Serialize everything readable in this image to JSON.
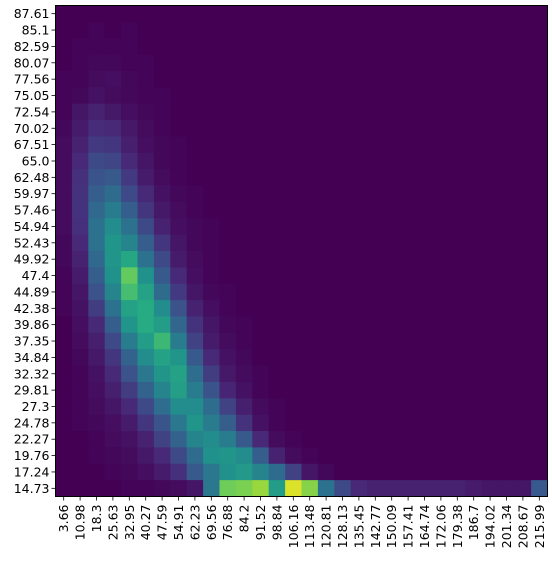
{
  "chart_data": {
    "type": "heatmap",
    "title": "",
    "xlabel": "",
    "ylabel": "",
    "x_categories": [
      "3.66",
      "10.98",
      "18.3",
      "25.63",
      "32.95",
      "40.27",
      "47.59",
      "54.91",
      "62.23",
      "69.56",
      "76.88",
      "84.2",
      "91.52",
      "98.84",
      "106.16",
      "113.48",
      "120.81",
      "128.13",
      "135.45",
      "142.77",
      "150.09",
      "157.41",
      "164.74",
      "172.06",
      "179.38",
      "186.7",
      "194.02",
      "201.34",
      "208.67",
      "215.99"
    ],
    "y_categories": [
      "87.61",
      "85.1",
      "82.59",
      "80.07",
      "77.56",
      "75.05",
      "72.54",
      "70.02",
      "67.51",
      "65.0",
      "62.48",
      "59.97",
      "57.46",
      "54.94",
      "52.43",
      "49.92",
      "47.4",
      "44.89",
      "42.38",
      "39.86",
      "37.35",
      "34.84",
      "32.32",
      "29.81",
      "27.3",
      "24.78",
      "22.27",
      "19.76",
      "17.24",
      "14.73"
    ],
    "colormap": "viridis",
    "value_range": [
      0,
      1
    ],
    "values": [
      [
        0.0,
        0.0,
        0.0,
        0.0,
        0.0,
        0.0,
        0.0,
        0.0,
        0.0,
        0.0,
        0.0,
        0.0,
        0.0,
        0.0,
        0.0,
        0.0,
        0.0,
        0.0,
        0.0,
        0.0,
        0.0,
        0.0,
        0.0,
        0.0,
        0.0,
        0.0,
        0.0,
        0.0,
        0.0,
        0.0
      ],
      [
        0.0,
        0.0,
        0.01,
        0.0,
        0.01,
        0.0,
        0.0,
        0.0,
        0.0,
        0.0,
        0.0,
        0.0,
        0.0,
        0.0,
        0.0,
        0.0,
        0.0,
        0.0,
        0.0,
        0.0,
        0.0,
        0.0,
        0.0,
        0.0,
        0.0,
        0.0,
        0.0,
        0.0,
        0.0,
        0.0
      ],
      [
        0.0,
        0.01,
        0.01,
        0.01,
        0.01,
        0.0,
        0.0,
        0.0,
        0.0,
        0.0,
        0.0,
        0.0,
        0.0,
        0.0,
        0.0,
        0.0,
        0.0,
        0.0,
        0.0,
        0.0,
        0.0,
        0.0,
        0.0,
        0.0,
        0.0,
        0.0,
        0.0,
        0.0,
        0.0,
        0.0
      ],
      [
        0.0,
        0.01,
        0.02,
        0.02,
        0.01,
        0.01,
        0.0,
        0.0,
        0.0,
        0.0,
        0.0,
        0.0,
        0.0,
        0.0,
        0.0,
        0.0,
        0.0,
        0.0,
        0.0,
        0.0,
        0.0,
        0.0,
        0.0,
        0.0,
        0.0,
        0.0,
        0.0,
        0.0,
        0.0,
        0.0
      ],
      [
        0.01,
        0.01,
        0.03,
        0.04,
        0.02,
        0.01,
        0.0,
        0.0,
        0.0,
        0.0,
        0.0,
        0.0,
        0.0,
        0.0,
        0.0,
        0.0,
        0.0,
        0.0,
        0.0,
        0.0,
        0.0,
        0.0,
        0.0,
        0.0,
        0.0,
        0.0,
        0.0,
        0.0,
        0.0,
        0.0
      ],
      [
        0.01,
        0.02,
        0.05,
        0.03,
        0.02,
        0.01,
        0.01,
        0.0,
        0.0,
        0.0,
        0.0,
        0.0,
        0.0,
        0.0,
        0.0,
        0.0,
        0.0,
        0.0,
        0.0,
        0.0,
        0.0,
        0.0,
        0.0,
        0.0,
        0.0,
        0.0,
        0.0,
        0.0,
        0.0,
        0.0
      ],
      [
        0.01,
        0.06,
        0.1,
        0.07,
        0.04,
        0.02,
        0.01,
        0.0,
        0.0,
        0.0,
        0.0,
        0.0,
        0.0,
        0.0,
        0.0,
        0.0,
        0.0,
        0.0,
        0.0,
        0.0,
        0.0,
        0.0,
        0.0,
        0.0,
        0.0,
        0.0,
        0.0,
        0.0,
        0.0,
        0.0
      ],
      [
        0.02,
        0.08,
        0.13,
        0.12,
        0.07,
        0.03,
        0.01,
        0.0,
        0.0,
        0.0,
        0.0,
        0.0,
        0.0,
        0.0,
        0.0,
        0.0,
        0.0,
        0.0,
        0.0,
        0.0,
        0.0,
        0.0,
        0.0,
        0.0,
        0.0,
        0.0,
        0.0,
        0.0,
        0.0,
        0.0
      ],
      [
        0.03,
        0.1,
        0.17,
        0.16,
        0.09,
        0.04,
        0.02,
        0.01,
        0.0,
        0.0,
        0.0,
        0.0,
        0.0,
        0.0,
        0.0,
        0.0,
        0.0,
        0.0,
        0.0,
        0.0,
        0.0,
        0.0,
        0.0,
        0.0,
        0.0,
        0.0,
        0.0,
        0.0,
        0.0,
        0.0
      ],
      [
        0.03,
        0.12,
        0.22,
        0.21,
        0.12,
        0.06,
        0.02,
        0.01,
        0.0,
        0.0,
        0.0,
        0.0,
        0.0,
        0.0,
        0.0,
        0.0,
        0.0,
        0.0,
        0.0,
        0.0,
        0.0,
        0.0,
        0.0,
        0.0,
        0.0,
        0.0,
        0.0,
        0.0,
        0.0,
        0.0
      ],
      [
        0.03,
        0.14,
        0.26,
        0.28,
        0.17,
        0.08,
        0.03,
        0.01,
        0.0,
        0.0,
        0.0,
        0.0,
        0.0,
        0.0,
        0.0,
        0.0,
        0.0,
        0.0,
        0.0,
        0.0,
        0.0,
        0.0,
        0.0,
        0.0,
        0.0,
        0.0,
        0.0,
        0.0,
        0.0,
        0.0
      ],
      [
        0.03,
        0.15,
        0.3,
        0.35,
        0.22,
        0.12,
        0.05,
        0.02,
        0.01,
        0.0,
        0.0,
        0.0,
        0.0,
        0.0,
        0.0,
        0.0,
        0.0,
        0.0,
        0.0,
        0.0,
        0.0,
        0.0,
        0.0,
        0.0,
        0.0,
        0.0,
        0.0,
        0.0,
        0.0,
        0.0
      ],
      [
        0.03,
        0.15,
        0.34,
        0.42,
        0.3,
        0.16,
        0.07,
        0.03,
        0.01,
        0.0,
        0.0,
        0.0,
        0.0,
        0.0,
        0.0,
        0.0,
        0.0,
        0.0,
        0.0,
        0.0,
        0.0,
        0.0,
        0.0,
        0.0,
        0.0,
        0.0,
        0.0,
        0.0,
        0.0,
        0.0
      ],
      [
        0.03,
        0.14,
        0.38,
        0.48,
        0.38,
        0.22,
        0.1,
        0.04,
        0.02,
        0.01,
        0.0,
        0.0,
        0.0,
        0.0,
        0.0,
        0.0,
        0.0,
        0.0,
        0.0,
        0.0,
        0.0,
        0.0,
        0.0,
        0.0,
        0.0,
        0.0,
        0.0,
        0.0,
        0.0,
        0.0
      ],
      [
        0.02,
        0.12,
        0.38,
        0.52,
        0.45,
        0.3,
        0.16,
        0.06,
        0.02,
        0.01,
        0.0,
        0.0,
        0.0,
        0.0,
        0.0,
        0.0,
        0.0,
        0.0,
        0.0,
        0.0,
        0.0,
        0.0,
        0.0,
        0.0,
        0.0,
        0.0,
        0.0,
        0.0,
        0.0,
        0.0
      ],
      [
        0.02,
        0.1,
        0.34,
        0.52,
        0.6,
        0.38,
        0.22,
        0.08,
        0.03,
        0.01,
        0.0,
        0.0,
        0.0,
        0.0,
        0.0,
        0.0,
        0.0,
        0.0,
        0.0,
        0.0,
        0.0,
        0.0,
        0.0,
        0.0,
        0.0,
        0.0,
        0.0,
        0.0,
        0.0,
        0.0
      ],
      [
        0.01,
        0.08,
        0.3,
        0.5,
        0.76,
        0.5,
        0.28,
        0.12,
        0.04,
        0.01,
        0.0,
        0.0,
        0.0,
        0.0,
        0.0,
        0.0,
        0.0,
        0.0,
        0.0,
        0.0,
        0.0,
        0.0,
        0.0,
        0.0,
        0.0,
        0.0,
        0.0,
        0.0,
        0.0,
        0.0
      ],
      [
        0.01,
        0.06,
        0.25,
        0.45,
        0.7,
        0.58,
        0.35,
        0.17,
        0.06,
        0.02,
        0.01,
        0.0,
        0.0,
        0.0,
        0.0,
        0.0,
        0.0,
        0.0,
        0.0,
        0.0,
        0.0,
        0.0,
        0.0,
        0.0,
        0.0,
        0.0,
        0.0,
        0.0,
        0.0,
        0.0
      ],
      [
        0.01,
        0.05,
        0.18,
        0.38,
        0.58,
        0.62,
        0.48,
        0.25,
        0.1,
        0.04,
        0.01,
        0.0,
        0.0,
        0.0,
        0.0,
        0.0,
        0.0,
        0.0,
        0.0,
        0.0,
        0.0,
        0.0,
        0.0,
        0.0,
        0.0,
        0.0,
        0.0,
        0.0,
        0.0,
        0.0
      ],
      [
        0.0,
        0.04,
        0.12,
        0.3,
        0.52,
        0.62,
        0.55,
        0.33,
        0.15,
        0.06,
        0.02,
        0.01,
        0.0,
        0.0,
        0.0,
        0.0,
        0.0,
        0.0,
        0.0,
        0.0,
        0.0,
        0.0,
        0.0,
        0.0,
        0.0,
        0.0,
        0.0,
        0.0,
        0.0,
        0.0
      ],
      [
        0.0,
        0.03,
        0.09,
        0.22,
        0.42,
        0.55,
        0.68,
        0.42,
        0.2,
        0.08,
        0.03,
        0.01,
        0.0,
        0.0,
        0.0,
        0.0,
        0.0,
        0.0,
        0.0,
        0.0,
        0.0,
        0.0,
        0.0,
        0.0,
        0.0,
        0.0,
        0.0,
        0.0,
        0.0,
        0.0
      ],
      [
        0.0,
        0.02,
        0.07,
        0.16,
        0.32,
        0.48,
        0.58,
        0.52,
        0.28,
        0.12,
        0.05,
        0.02,
        0.0,
        0.0,
        0.0,
        0.0,
        0.0,
        0.0,
        0.0,
        0.0,
        0.0,
        0.0,
        0.0,
        0.0,
        0.0,
        0.0,
        0.0,
        0.0,
        0.0,
        0.0
      ],
      [
        0.0,
        0.01,
        0.05,
        0.12,
        0.25,
        0.4,
        0.52,
        0.58,
        0.36,
        0.18,
        0.07,
        0.03,
        0.01,
        0.0,
        0.0,
        0.0,
        0.0,
        0.0,
        0.0,
        0.0,
        0.0,
        0.0,
        0.0,
        0.0,
        0.0,
        0.0,
        0.0,
        0.0,
        0.0,
        0.0
      ],
      [
        0.0,
        0.01,
        0.04,
        0.09,
        0.18,
        0.32,
        0.45,
        0.56,
        0.42,
        0.26,
        0.11,
        0.05,
        0.01,
        0.0,
        0.0,
        0.0,
        0.0,
        0.0,
        0.0,
        0.0,
        0.0,
        0.0,
        0.0,
        0.0,
        0.0,
        0.0,
        0.0,
        0.0,
        0.0,
        0.0
      ],
      [
        0.0,
        0.01,
        0.03,
        0.06,
        0.12,
        0.22,
        0.36,
        0.48,
        0.48,
        0.36,
        0.2,
        0.09,
        0.03,
        0.01,
        0.0,
        0.0,
        0.0,
        0.0,
        0.0,
        0.0,
        0.0,
        0.0,
        0.0,
        0.0,
        0.0,
        0.0,
        0.0,
        0.0,
        0.0,
        0.0
      ],
      [
        0.0,
        0.01,
        0.02,
        0.04,
        0.08,
        0.16,
        0.26,
        0.4,
        0.52,
        0.42,
        0.3,
        0.15,
        0.05,
        0.01,
        0.0,
        0.0,
        0.0,
        0.0,
        0.0,
        0.0,
        0.0,
        0.0,
        0.0,
        0.0,
        0.0,
        0.0,
        0.0,
        0.0,
        0.0,
        0.0
      ],
      [
        0.0,
        0.0,
        0.01,
        0.03,
        0.05,
        0.1,
        0.2,
        0.32,
        0.45,
        0.48,
        0.42,
        0.28,
        0.12,
        0.03,
        0.01,
        0.0,
        0.0,
        0.0,
        0.0,
        0.0,
        0.0,
        0.0,
        0.0,
        0.0,
        0.0,
        0.0,
        0.0,
        0.0,
        0.0,
        0.0
      ],
      [
        0.0,
        0.0,
        0.01,
        0.02,
        0.03,
        0.07,
        0.12,
        0.22,
        0.35,
        0.5,
        0.52,
        0.48,
        0.3,
        0.1,
        0.03,
        0.01,
        0.0,
        0.0,
        0.0,
        0.0,
        0.0,
        0.0,
        0.0,
        0.0,
        0.0,
        0.0,
        0.0,
        0.0,
        0.0,
        0.0
      ],
      [
        0.0,
        0.0,
        0.0,
        0.01,
        0.02,
        0.04,
        0.08,
        0.14,
        0.28,
        0.4,
        0.5,
        0.54,
        0.45,
        0.35,
        0.2,
        0.06,
        0.02,
        0.0,
        0.0,
        0.0,
        0.0,
        0.0,
        0.0,
        0.0,
        0.0,
        0.0,
        0.0,
        0.0,
        0.0,
        0.0
      ],
      [
        0.0,
        0.0,
        0.0,
        0.0,
        0.01,
        0.01,
        0.02,
        0.03,
        0.06,
        0.4,
        0.78,
        0.8,
        0.85,
        0.55,
        0.95,
        0.82,
        0.38,
        0.22,
        0.12,
        0.1,
        0.1,
        0.1,
        0.1,
        0.1,
        0.1,
        0.08,
        0.06,
        0.06,
        0.06,
        0.28
      ]
    ]
  }
}
